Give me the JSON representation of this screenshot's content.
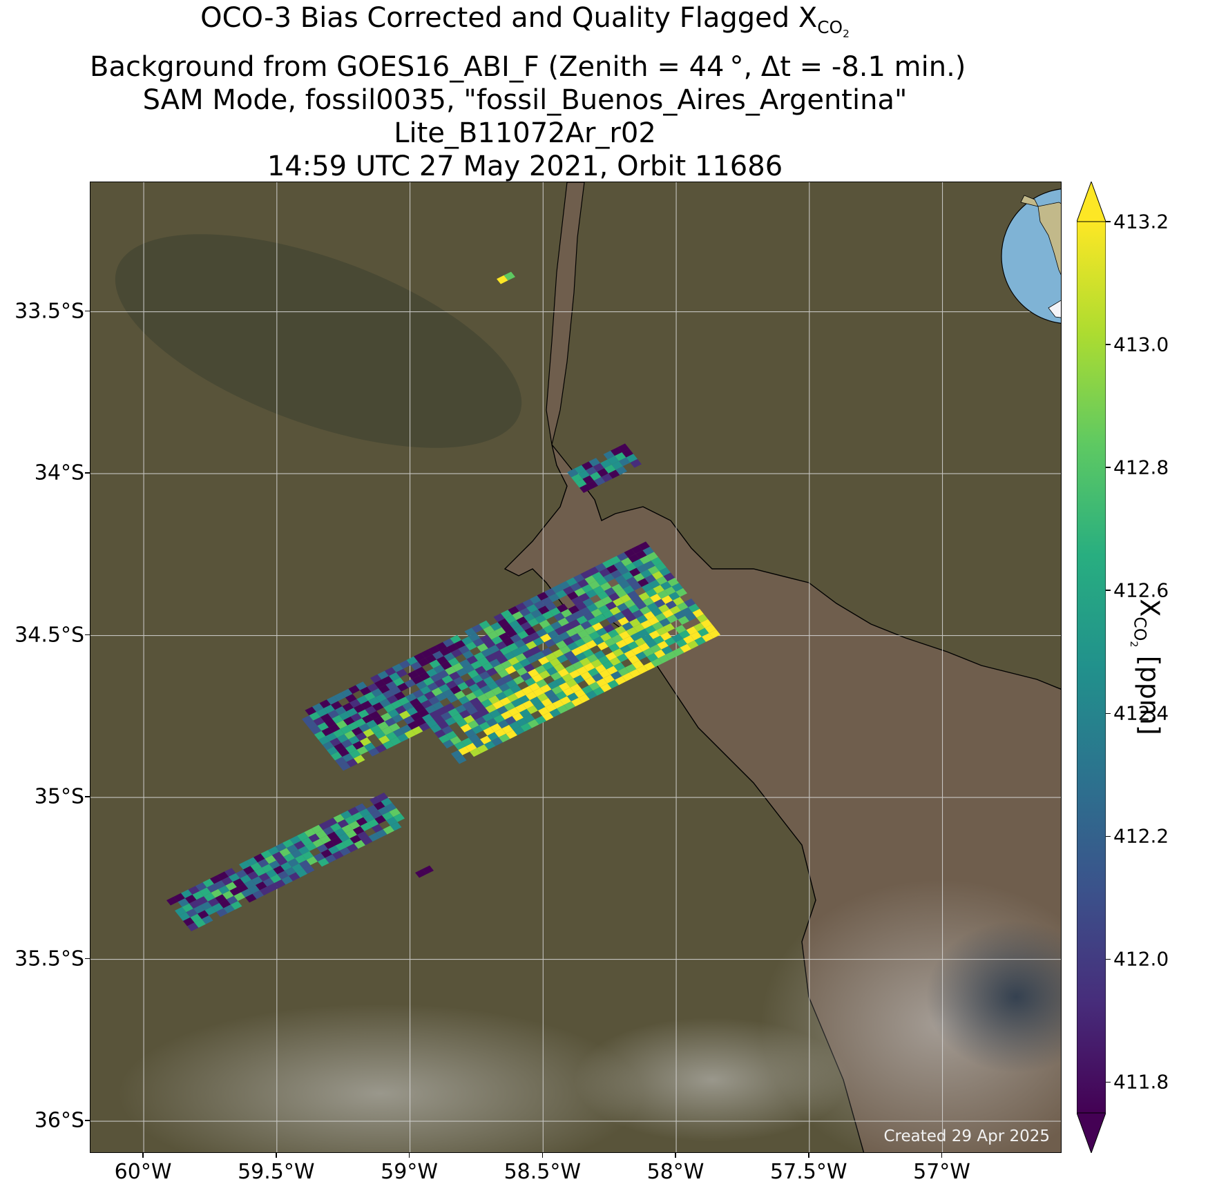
{
  "title": {
    "line1_prefix": "OCO-3 Bias Corrected and Quality Flagged X",
    "line1_sub": "CO",
    "line1_sub2": "2",
    "line2": "Background from GOES16_ABI_F (Zenith = 44 °, Δt = -8.1 min.)",
    "line3": "SAM Mode, fossil0035, \"fossil_Buenos_Aires_Argentina\"",
    "line4": "Lite_B11072Ar_r02",
    "line5": "14:59 UTC 27 May 2021, Orbit 11686"
  },
  "map": {
    "lat_ticks": [
      "33.5°S",
      "34°S",
      "34.5°S",
      "35°S",
      "35.5°S",
      "36°S"
    ],
    "lon_ticks": [
      "60°W",
      "59.5°W",
      "59°W",
      "58.5°W",
      "58°W",
      "57.5°W",
      "57°W"
    ],
    "lat_values": [
      -33.5,
      -34.0,
      -34.5,
      -35.0,
      -35.5,
      -36.0
    ],
    "lon_values": [
      -60.0,
      -59.5,
      -59.0,
      -58.5,
      -58.0,
      -57.5,
      -57.0
    ],
    "lat_range": [
      -36.1,
      -33.1
    ],
    "lon_range": [
      -60.2,
      -56.55
    ],
    "created_label": "Created 29 Apr 2025",
    "land_color": "#59543a",
    "water_color": "#6f5e4d",
    "grid": true
  },
  "colorbar": {
    "label_prefix": "X",
    "label_sub": "CO",
    "label_sub2": "2",
    "label_suffix": " [ppm]",
    "ticks": [
      "413.2",
      "413.0",
      "412.8",
      "412.6",
      "412.4",
      "412.2",
      "412.0",
      "411.8"
    ],
    "tick_values": [
      413.2,
      413.0,
      412.8,
      412.6,
      412.4,
      412.2,
      412.0,
      411.8
    ],
    "min": 411.75,
    "max": 413.2,
    "colormap": "viridis",
    "extend": "both"
  },
  "inset": {
    "marker_color": "#e02020",
    "ocean_color": "#7fb3d5"
  }
}
